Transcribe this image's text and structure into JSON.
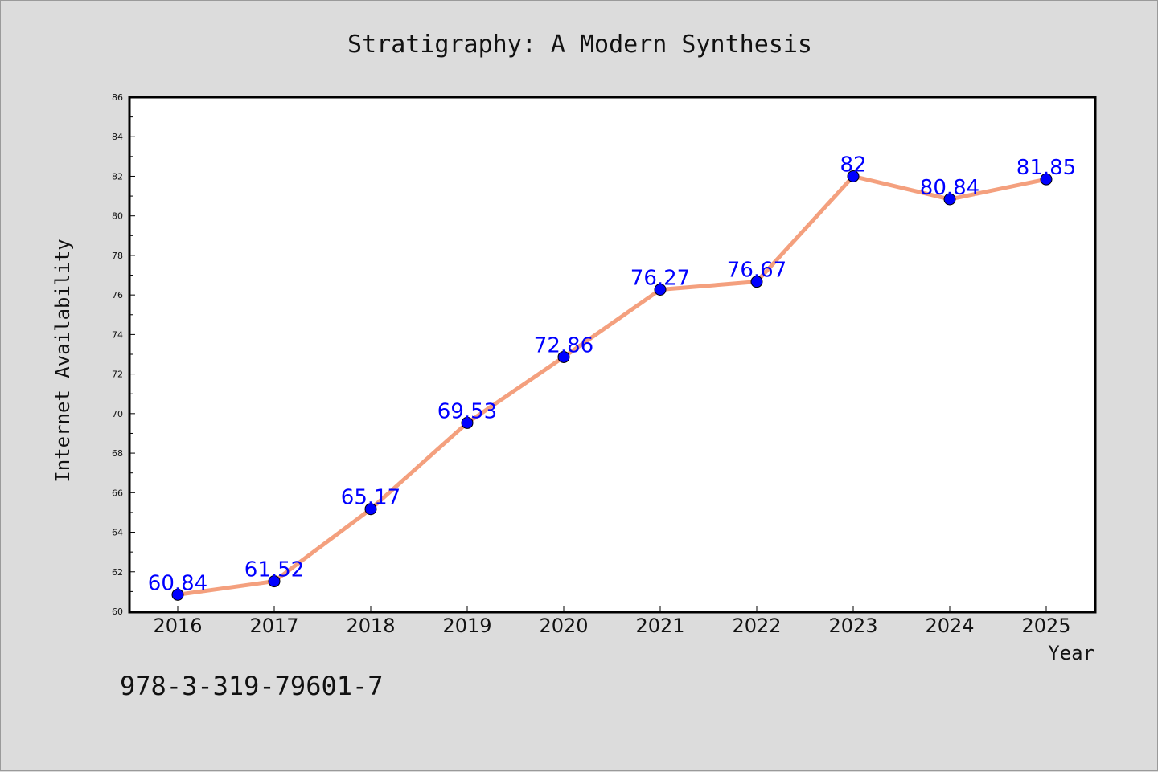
{
  "chart_data": {
    "type": "line",
    "title": "Stratigraphy: A Modern Synthesis",
    "xlabel": "Year",
    "ylabel": "Internet Availability",
    "x": [
      "2016",
      "2017",
      "2018",
      "2019",
      "2020",
      "2021",
      "2022",
      "2023",
      "2024",
      "2025"
    ],
    "y": [
      60.84,
      61.52,
      65.17,
      69.53,
      72.86,
      76.27,
      76.67,
      82,
      80.84,
      81.85
    ],
    "data_labels": [
      "60.84",
      "61.52",
      "65.17",
      "69.53",
      "72.86",
      "76.27",
      "76.67",
      "82",
      "80.84",
      "81.85"
    ],
    "ylim": [
      60,
      86
    ],
    "yticks": [
      60,
      62,
      64,
      66,
      68,
      70,
      72,
      74,
      76,
      78,
      80,
      82,
      84,
      86
    ],
    "grid": false,
    "legend": "none",
    "line_color": "#f4a07e",
    "marker_color": "#0000ff",
    "label_color": "#0000ff"
  },
  "footer": {
    "code": "978-3-319-79601-7"
  }
}
